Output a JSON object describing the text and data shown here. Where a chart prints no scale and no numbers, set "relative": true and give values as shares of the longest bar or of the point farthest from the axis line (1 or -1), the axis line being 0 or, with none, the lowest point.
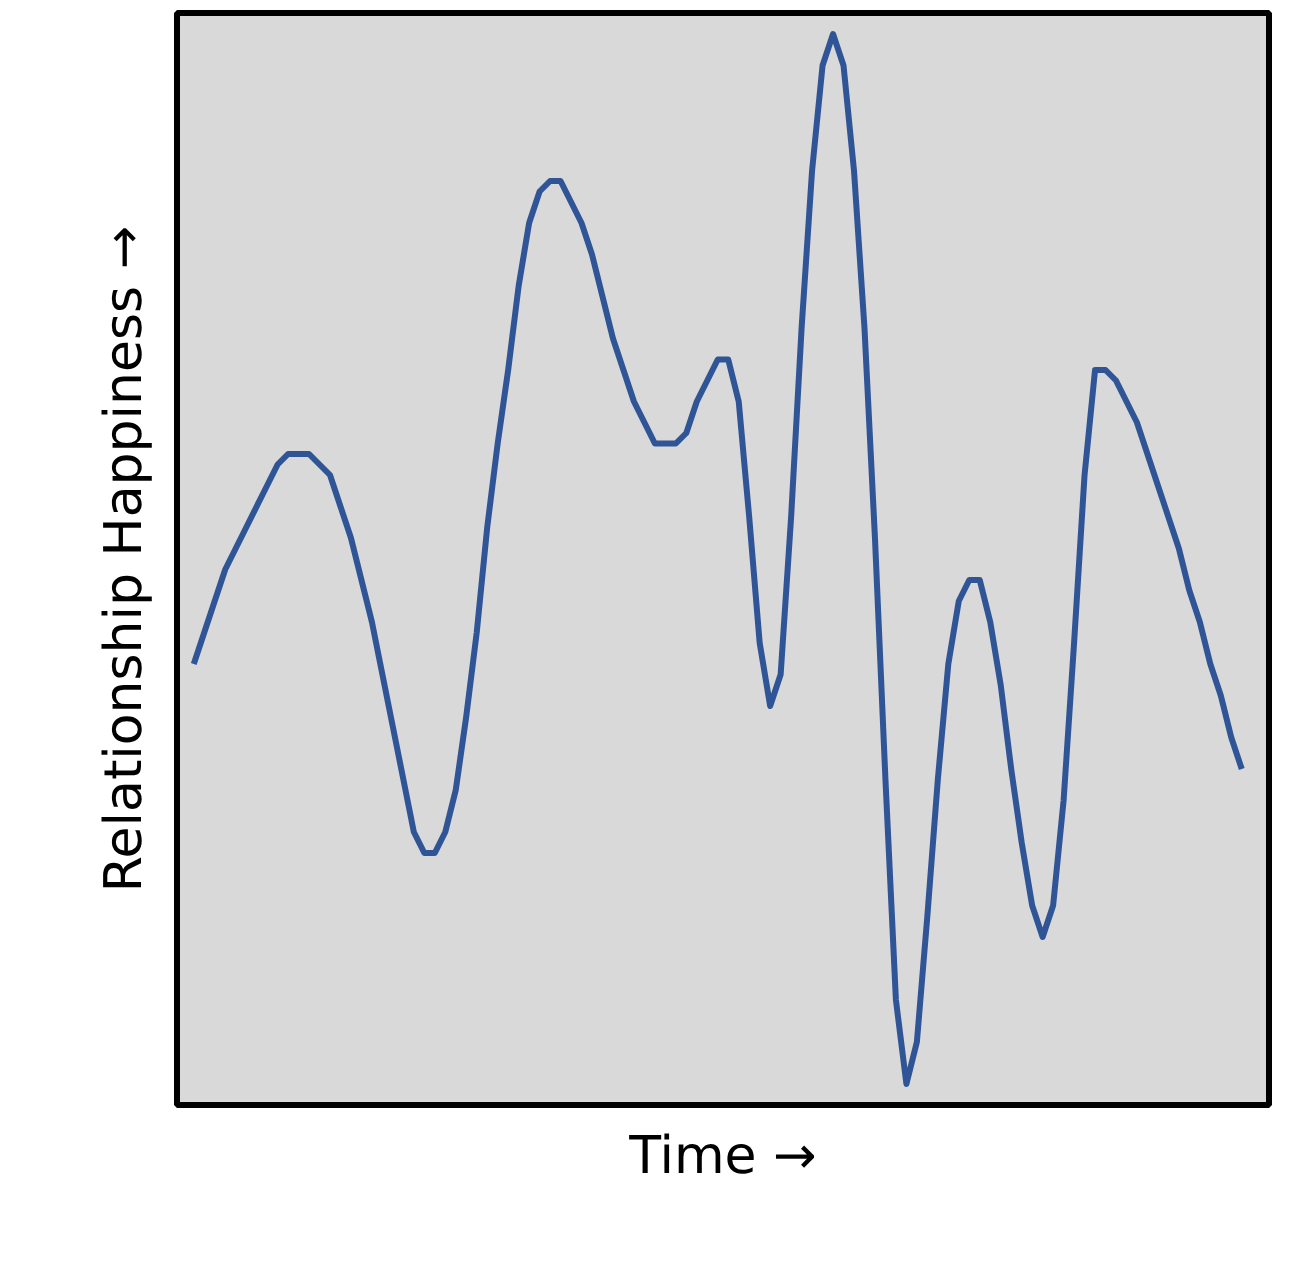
{
  "chart_data": {
    "type": "line",
    "relative": true,
    "xlabel": "Time →",
    "ylabel": "Relationship Happiness →",
    "line_style": "solid",
    "categories": [
      null,
      null,
      null,
      null,
      null,
      null,
      null,
      null,
      null,
      null,
      null,
      null,
      null,
      null,
      null,
      null,
      null,
      null,
      null,
      null,
      null,
      null,
      null,
      null,
      null,
      null,
      null,
      null,
      null,
      null,
      null,
      null,
      null,
      null,
      null,
      null,
      null,
      null,
      null,
      null,
      null,
      null,
      null,
      null,
      null,
      null,
      null,
      null,
      null,
      null,
      null,
      null,
      null,
      null,
      null,
      null,
      null,
      null,
      null,
      null,
      null,
      null,
      null,
      null,
      null,
      null,
      null,
      null,
      null,
      null,
      null,
      null,
      null,
      null,
      null,
      null,
      null,
      null,
      null,
      null,
      null,
      null,
      null,
      null,
      null,
      null,
      null,
      null,
      null,
      null,
      null,
      null,
      null,
      null,
      null,
      null,
      null,
      null,
      null,
      null,
      null
    ],
    "series": [
      {
        "color": "#2f5597",
        "values": [
          0.4,
          0.43,
          0.46,
          0.49,
          0.51,
          0.53,
          0.55,
          0.57,
          0.59,
          0.6,
          0.6,
          0.6,
          0.59,
          0.58,
          0.55,
          0.52,
          0.48,
          0.44,
          0.39,
          0.34,
          0.29,
          0.24,
          0.22,
          0.22,
          0.24,
          0.28,
          0.35,
          0.43,
          0.53,
          0.61,
          0.68,
          0.76,
          0.82,
          0.85,
          0.86,
          0.86,
          0.84,
          0.82,
          0.79,
          0.75,
          0.71,
          0.68,
          0.65,
          0.63,
          0.61,
          0.61,
          0.61,
          0.62,
          0.65,
          0.67,
          0.69,
          0.69,
          0.65,
          0.54,
          0.42,
          0.36,
          0.39,
          0.54,
          0.72,
          0.87,
          0.97,
          1.0,
          0.97,
          0.87,
          0.72,
          0.52,
          0.29,
          0.08,
          0.0,
          0.04,
          0.16,
          0.29,
          0.4,
          0.46,
          0.48,
          0.48,
          0.44,
          0.38,
          0.3,
          0.23,
          0.17,
          0.14,
          0.17,
          0.27,
          0.42,
          0.58,
          0.68,
          0.68,
          0.67,
          0.65,
          0.63,
          0.6,
          0.57,
          0.54,
          0.51,
          0.47,
          0.44,
          0.4,
          0.37,
          0.33,
          0.3
        ]
      }
    ]
  }
}
